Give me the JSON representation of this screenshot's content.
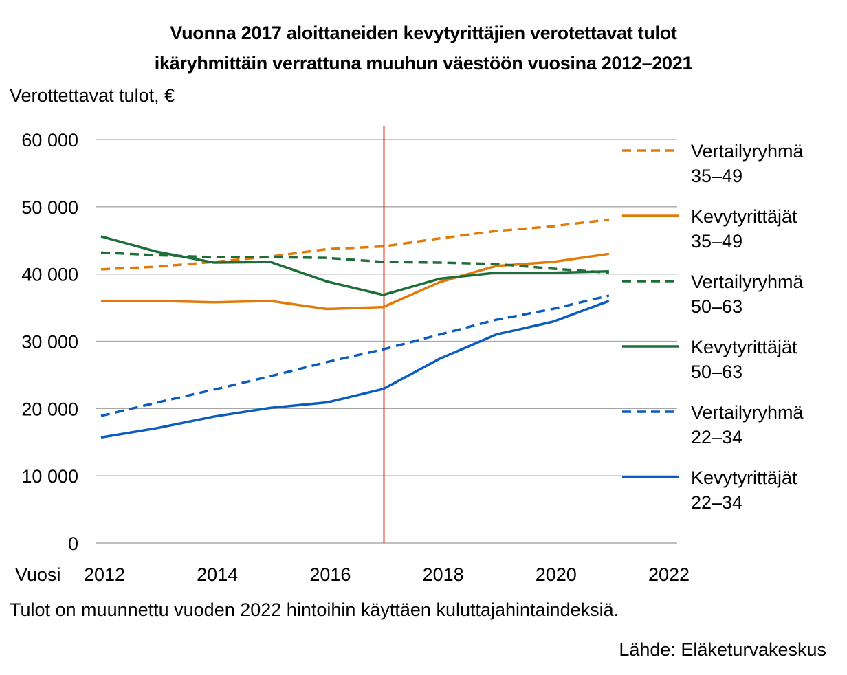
{
  "chart_data": {
    "type": "line",
    "title": "Vuonna 2017 aloittaneiden kevytyrittäjien verotettavat tulot ikäryhmittäin verrattuna muuhun väestöön vuosina 2012–2021",
    "title_lines": [
      "Vuonna 2017 aloittaneiden kevytyrittäjien verotettavat tulot",
      "ikäryhmittäin verrattuna muuhun väestöön vuosina 2012–2021"
    ],
    "ylabel": "Verottettavat tulot, €",
    "xlabel": "Vuosi",
    "ylim": [
      0,
      60000
    ],
    "xlim": [
      2012,
      2022
    ],
    "yticks": [
      {
        "value": 60000,
        "label": "60 000"
      },
      {
        "value": 50000,
        "label": "50 000"
      },
      {
        "value": 40000,
        "label": "40 000"
      },
      {
        "value": 30000,
        "label": "30 000"
      },
      {
        "value": 20000,
        "label": "20 000"
      },
      {
        "value": 10000,
        "label": "10 000"
      },
      {
        "value": 0,
        "label": "0"
      }
    ],
    "xticks": [
      {
        "value": 2012,
        "label": "2012"
      },
      {
        "value": 2014,
        "label": "2014"
      },
      {
        "value": 2016,
        "label": "2016"
      },
      {
        "value": 2018,
        "label": "2018"
      },
      {
        "value": 2020,
        "label": "2020"
      },
      {
        "value": 2022,
        "label": "2022"
      }
    ],
    "grid": true,
    "legend_position": "right",
    "reference_line": {
      "x": 2017,
      "color": "#d9391a"
    },
    "x": [
      2012,
      2013,
      2014,
      2015,
      2016,
      2017,
      2018,
      2019,
      2020,
      2021
    ],
    "series": [
      {
        "name": "Vertailyryhmä 35–49",
        "legend_lines": [
          "Vertailyryhmä",
          "35–49"
        ],
        "color": "#e07b0a",
        "dashed": true,
        "values": [
          40700,
          41100,
          41800,
          42600,
          43700,
          44100,
          45300,
          46400,
          47100,
          48100
        ]
      },
      {
        "name": "Kevytyrittäjät 35–49",
        "legend_lines": [
          "Kevytyrittäjät",
          "35–49"
        ],
        "color": "#e07b0a",
        "dashed": false,
        "values": [
          36000,
          36000,
          35800,
          36000,
          34800,
          35100,
          38800,
          41200,
          41800,
          43000
        ]
      },
      {
        "name": "Vertailyryhmä 50–63",
        "legend_lines": [
          "Vertailyryhmä",
          "50–63"
        ],
        "color": "#1f6e3a",
        "dashed": true,
        "values": [
          43200,
          42800,
          42500,
          42500,
          42400,
          41800,
          41700,
          41500,
          40800,
          40200
        ]
      },
      {
        "name": "Kevytyrittäjät 50–63",
        "legend_lines": [
          "Kevytyrittäjät",
          "50–63"
        ],
        "color": "#1f6e3a",
        "dashed": false,
        "values": [
          45600,
          43300,
          41700,
          41800,
          38900,
          36900,
          39300,
          40200,
          40200,
          40400
        ]
      },
      {
        "name": "Vertailyryhmä 22–34",
        "legend_lines": [
          "Vertailyryhmä",
          "22–34"
        ],
        "color": "#0a5cbf",
        "dashed": true,
        "values": [
          18900,
          20900,
          22800,
          24800,
          26900,
          28800,
          31000,
          33200,
          34800,
          36800
        ]
      },
      {
        "name": "Kevytyrittäjät 22–34",
        "legend_lines": [
          "Kevytyrittäjät",
          "22–34"
        ],
        "color": "#0a5cbf",
        "dashed": false,
        "values": [
          15700,
          17100,
          18800,
          20100,
          20900,
          22900,
          27400,
          31000,
          32900,
          36000
        ]
      }
    ]
  },
  "footer": {
    "note": "Tulot on muunnettu vuoden 2022 hintoihin käyttäen kuluttajahintaindeksiä.",
    "source": "Lähde: Eläketurvakeskus"
  }
}
